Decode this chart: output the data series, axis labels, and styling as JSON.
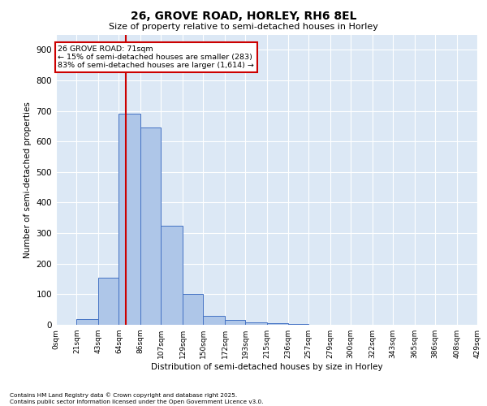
{
  "title1": "26, GROVE ROAD, HORLEY, RH6 8EL",
  "title2": "Size of property relative to semi-detached houses in Horley",
  "xlabel": "Distribution of semi-detached houses by size in Horley",
  "ylabel": "Number of semi-detached properties",
  "bin_labels": [
    "0sqm",
    "21sqm",
    "43sqm",
    "64sqm",
    "86sqm",
    "107sqm",
    "129sqm",
    "150sqm",
    "172sqm",
    "193sqm",
    "215sqm",
    "236sqm",
    "257sqm",
    "279sqm",
    "300sqm",
    "322sqm",
    "343sqm",
    "365sqm",
    "386sqm",
    "408sqm",
    "429sqm"
  ],
  "bin_edges": [
    0,
    21,
    43,
    64,
    86,
    107,
    129,
    150,
    172,
    193,
    215,
    236,
    257,
    279,
    300,
    322,
    343,
    365,
    386,
    408,
    429
  ],
  "bar_heights": [
    0,
    18,
    155,
    690,
    645,
    325,
    100,
    30,
    15,
    7,
    5,
    2,
    0,
    0,
    0,
    0,
    0,
    0,
    0,
    0
  ],
  "bar_color": "#aec6e8",
  "bar_edge_color": "#4472c4",
  "vline_x": 71,
  "vline_color": "#cc0000",
  "annotation_line1": "26 GROVE ROAD: 71sqm",
  "annotation_line2": "← 15% of semi-detached houses are smaller (283)",
  "annotation_line3": "83% of semi-detached houses are larger (1,614) →",
  "annotation_box_color": "#cc0000",
  "annotation_bg": "#ffffff",
  "ylim": [
    0,
    950
  ],
  "yticks": [
    0,
    100,
    200,
    300,
    400,
    500,
    600,
    700,
    800,
    900
  ],
  "background_color": "#dce8f5",
  "grid_color": "#ffffff",
  "footer1": "Contains HM Land Registry data © Crown copyright and database right 2025.",
  "footer2": "Contains public sector information licensed under the Open Government Licence v3.0."
}
